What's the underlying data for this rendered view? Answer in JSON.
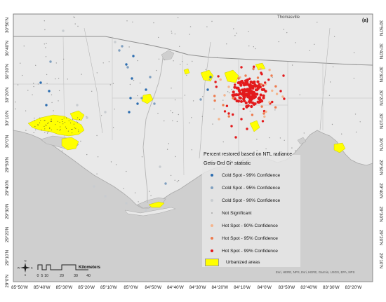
{
  "panel_label": "(a)",
  "city_label": "Thomasville",
  "credit": "Esri, HERE, NPS, Esri, HERE, Garmin, USGS, EPA, NPS",
  "lon_labels": [
    "85°50'W",
    "85°40'W",
    "85°30'W",
    "85°20'W",
    "85°10'W",
    "85°0'W",
    "84°50'W",
    "84°40'W",
    "84°30'W",
    "84°20'W",
    "84°10'W",
    "84°0'W",
    "83°50'W",
    "83°40'W",
    "83°30'W",
    "83°20'W"
  ],
  "lat_labels_left": [
    "30°50'N",
    "30°40'N",
    "30°30'N",
    "30°20'N",
    "30°10'N",
    "30°0'N",
    "29°50'N",
    "29°40'N",
    "29°30'N",
    "29°20'N",
    "29°10'N",
    "29°0'N"
  ],
  "lat_labels_right": [
    "30°50'N",
    "30°40'N",
    "30°30'N",
    "30°20'N",
    "30°10'N",
    "30°0'N",
    "29°50'N",
    "29°40'N",
    "29°30'N",
    "29°20'N",
    "29°10'N"
  ],
  "legend": {
    "title": "Percent restored based on NTL radiance",
    "subtitle": "Getis-Ord Gi* statistic",
    "items": [
      {
        "label": "Cold Spot - 99% Confidence",
        "color": "#2c6db0"
      },
      {
        "label": "Cold Spot - 95% Confidence",
        "color": "#7f9fbf"
      },
      {
        "label": "Cold Spot - 90% Confidence",
        "color": "#c8ccd0"
      },
      {
        "label": "Not Significant",
        "color": "#a8a8a8"
      },
      {
        "label": "Hot Spot - 90% Confidence",
        "color": "#f5b48c"
      },
      {
        "label": "Hot Spot - 95% Confidence",
        "color": "#ee7b4e"
      },
      {
        "label": "Hot Spot - 99% Confidence",
        "color": "#e31a1c"
      }
    ],
    "urban_label": "Urbanized areas",
    "urban_color": "#ffff00"
  },
  "scale_bar": {
    "ticks": [
      "0",
      "5",
      "10",
      "20",
      "30",
      "40"
    ],
    "unit": "Kilometers"
  },
  "north_arrow": {
    "letters": [
      "N",
      "E",
      "S",
      "W"
    ]
  },
  "colors": {
    "land": "#e8e8e8",
    "water": "#cccccc",
    "outline": "#999999"
  }
}
